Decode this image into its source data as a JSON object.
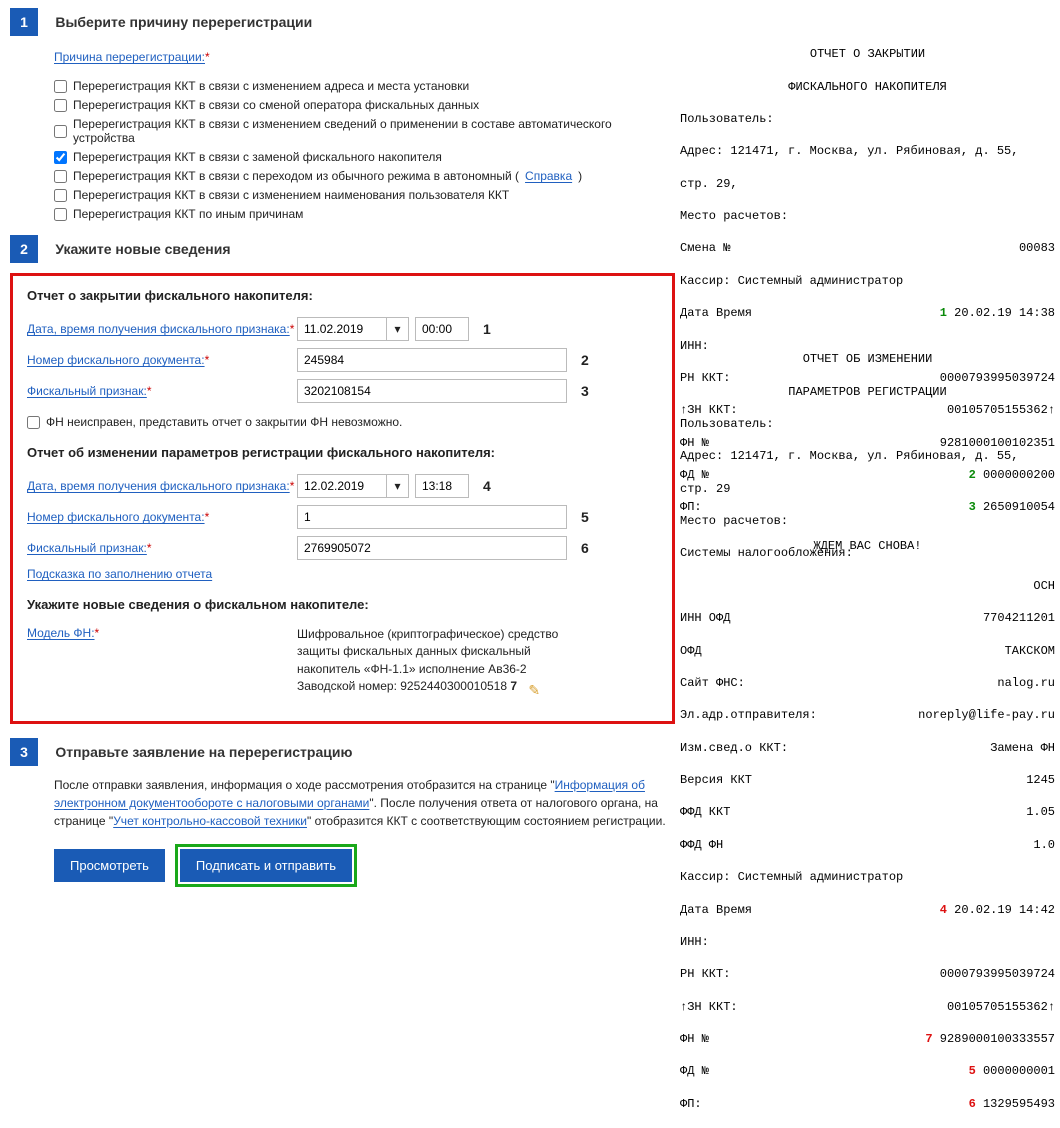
{
  "step1": {
    "num": "1",
    "title": "Выберите причину перерегистрации",
    "cause_label": "Причина перерегистрации:",
    "checkboxes": [
      {
        "checked": false,
        "label": "Перерегистрация ККТ в связи с изменением адреса и места установки"
      },
      {
        "checked": false,
        "label": "Перерегистрация ККТ в связи со сменой оператора фискальных данных"
      },
      {
        "checked": false,
        "label": "Перерегистрация ККТ в связи с изменением сведений о применении в составе автоматического устройства"
      },
      {
        "checked": true,
        "label": "Перерегистрация ККТ в связи с заменой фискального накопителя"
      },
      {
        "checked": false,
        "label": "Перерегистрация ККТ в связи с переходом из обычного режима в автономный (",
        "link": "Справка",
        "tail": ")"
      },
      {
        "checked": false,
        "label": "Перерегистрация ККТ в связи с изменением наименования пользователя ККТ"
      },
      {
        "checked": false,
        "label": "Перерегистрация ККТ по иным причинам"
      }
    ]
  },
  "step2": {
    "num": "2",
    "title": "Укажите новые сведения",
    "close_report_title": "Отчет о закрытии фискального накопителя:",
    "change_report_title": "Отчет об изменении параметров регистрации фискального накопителя:",
    "new_fn_title": "Укажите новые сведения о фискальном накопителе:",
    "fields": {
      "date_label": "Дата, время получения фискального признака:",
      "doc_label": "Номер фискального документа:",
      "fp_label": "Фискальный признак:",
      "hint_label": "Подсказка по заполнению отчета",
      "model_label": "Модель ФН:"
    },
    "close": {
      "date": "11.02.2019",
      "time": "00:00",
      "doc": "245984",
      "fp": "3202108154",
      "anno": [
        "1",
        "2",
        "3"
      ]
    },
    "fn_broken_label": "ФН неисправен, представить отчет о закрытии ФН невозможно.",
    "change": {
      "date": "12.02.2019",
      "time": "13:18",
      "doc": "1",
      "fp": "2769905072",
      "anno": [
        "4",
        "5",
        "6"
      ]
    },
    "model_desc": {
      "l1": "Шифровальное (криптографическое) средство",
      "l2": "защиты фискальных данных фискальный",
      "l3": "накопитель «ФН-1.1» исполнение Ав36-2",
      "l4": "Заводской номер: 9252440300010518",
      "anno": "7"
    }
  },
  "step3": {
    "num": "3",
    "title": "Отправьте заявление на перерегистрацию",
    "info_pre": "После отправки заявления, информация о ходе рассмотрения отобразится на странице \"",
    "info_link1": "Информация об электронном документообороте с налоговыми органами",
    "info_mid": "\". После получения ответа от налогового органа, на странице \"",
    "info_link2": "Учет контрольно-кассовой техники",
    "info_post": "\" отобразится ККТ с соответствующим состоянием регистрации.",
    "btn_view": "Просмотреть",
    "btn_sign": "Подписать и отправить"
  },
  "receipt1": {
    "title1": "ОТЧЕТ О ЗАКРЫТИИ",
    "title2": "ФИСКАЛЬНОГО НАКОПИТЕЛЯ",
    "user_l": "Пользователь:",
    "addr": "Адрес: 121471, г. Москва, ул. Рябиновая, д. 55,",
    "addr2": "стр. 29,",
    "place_l": "Место расчетов:",
    "smena_l": "Смена №",
    "smena_v": "00083",
    "cashier": "Кассир: Системный администратор",
    "dt_l": "Дата Время",
    "anno1": "1",
    "dt_v": "20.02.19 14:38",
    "inn_l": "ИНН:",
    "rn_l": "РН ККТ:",
    "rn_v": "0000793995039724",
    "zn_l": "↑ЗН ККТ:",
    "zn_v": "00105705155362↑",
    "fnn_l": "ФН №",
    "fnn_v": "9281000100102351",
    "fd_l": "ФД №",
    "anno2": "2",
    "fd_v": "0000000200",
    "fp_l": "ФП:",
    "anno3": "3",
    "fp_v": "2650910054",
    "bye": "ЖДЕМ ВАС СНОВА!"
  },
  "receipt2": {
    "title1": "ОТЧЕТ ОБ ИЗМЕНЕНИИ",
    "title2": "ПАРАМЕТРОВ РЕГИСТРАЦИИ",
    "user_l": "Пользователь:",
    "addr": "Адрес: 121471, г. Москва, ул. Рябиновая, д. 55,",
    "addr2": "стр. 29",
    "place_l": "Место расчетов:",
    "tax_l": "Системы налогообложения:",
    "tax_v": "ОСН",
    "innofd_l": "ИНН ОФД",
    "innofd_v": "7704211201",
    "ofd_l": "ОФД",
    "ofd_v": "ТАКСКОМ",
    "fns_l": "Сайт ФНС:",
    "fns_v": "nalog.ru",
    "email_l": "Эл.адр.отправителя:",
    "email_v": "noreply@life-pay.ru",
    "izm_l": "Изм.свед.о ККТ:",
    "izm_v": "Замена ФН",
    "ver_l": "Версия ККТ",
    "ver_v": "1245",
    "ffdkkt_l": "ФФД ККТ",
    "ffdkkt_v": "1.05",
    "ffdfn_l": "ФФД ФН",
    "ffdfn_v": "1.0",
    "cashier": "Кассир: Системный администратор",
    "dt_l": "Дата Время",
    "anno4": "4",
    "dt_v": "20.02.19 14:42",
    "inn_l": "ИНН:",
    "rn_l": "РН ККТ:",
    "rn_v": "0000793995039724",
    "zn_l": "↑ЗН ККТ:",
    "zn_v": "00105705155362↑",
    "fnn_l": "ФН №",
    "anno7": "7",
    "fnn_v": "9289000100333557",
    "fd_l": "ФД №",
    "anno5": "5",
    "fd_v": "0000000001",
    "fp_l": "ФП:",
    "anno6": "6",
    "fp_v": "1329595493"
  }
}
